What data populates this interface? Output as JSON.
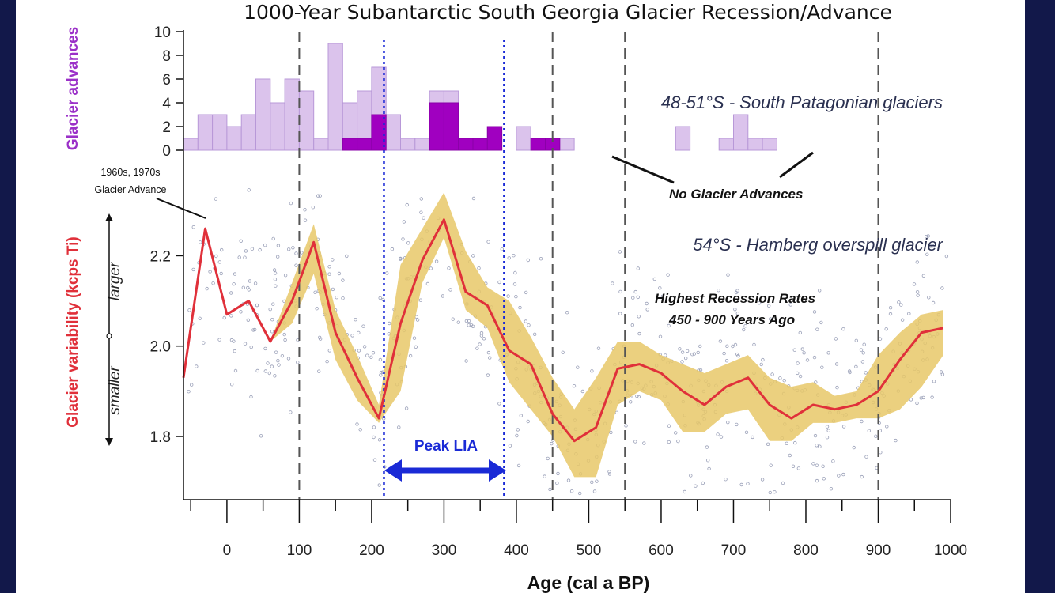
{
  "chart_data": {
    "title": "1000-Year Subantarctic South Georgia Glacier Recession/Advance",
    "xlabel": "Age (cal a BP)",
    "x_ticks": [
      0,
      100,
      200,
      300,
      400,
      500,
      600,
      700,
      800,
      900,
      1000
    ],
    "xlim": [
      -60,
      1000
    ],
    "top_panel": {
      "type": "bar",
      "ylabel": "Glacier advances",
      "y_ticks": [
        0,
        2,
        4,
        6,
        8,
        10
      ],
      "ylim": [
        0,
        10
      ],
      "bin_start": -60,
      "bin_width": 20,
      "series": [
        {
          "name": "48-51°S - South Patagonian glaciers",
          "color": "#dbc3ec",
          "values": [
            1,
            3,
            3,
            2,
            3,
            6,
            4,
            6,
            5,
            1,
            9,
            4,
            5,
            7,
            3,
            1,
            1,
            5,
            5,
            1,
            1,
            2,
            0,
            2,
            1,
            1,
            1,
            0,
            0,
            0,
            0,
            0,
            0,
            0,
            2,
            0,
            0,
            1,
            3,
            1,
            1
          ]
        },
        {
          "name": "54°S - Hamberg overspill glacier",
          "color": "#a000c0",
          "values": [
            0,
            0,
            0,
            0,
            0,
            0,
            0,
            0,
            0,
            0,
            0,
            1,
            1,
            3,
            0,
            0,
            0,
            4,
            4,
            1,
            1,
            2,
            0,
            0,
            1,
            1,
            0,
            0,
            0,
            0,
            0,
            0,
            0,
            0,
            0,
            0,
            0,
            0,
            0,
            0,
            0
          ]
        }
      ]
    },
    "bottom_panel": {
      "type": "line",
      "ylabel": "Glacier variability (kcps Ti)",
      "y_ticks": [
        1.8,
        2.0,
        2.2
      ],
      "ylim": [
        1.66,
        2.36
      ],
      "series_name": "54°S - Hamberg overspill glacier",
      "line_color": "#e0303a",
      "band_color": "#e8c868",
      "x": [
        -60,
        -30,
        0,
        30,
        60,
        90,
        120,
        150,
        180,
        210,
        240,
        270,
        300,
        330,
        360,
        390,
        420,
        450,
        480,
        510,
        540,
        570,
        600,
        630,
        660,
        690,
        720,
        750,
        780,
        810,
        840,
        870,
        900,
        930,
        960,
        990
      ],
      "y": [
        1.93,
        2.26,
        2.07,
        2.1,
        2.01,
        2.1,
        2.23,
        2.03,
        1.93,
        1.84,
        2.05,
        2.19,
        2.28,
        2.12,
        2.09,
        1.99,
        1.96,
        1.85,
        1.79,
        1.82,
        1.95,
        1.96,
        1.94,
        1.9,
        1.87,
        1.91,
        1.93,
        1.87,
        1.84,
        1.87,
        1.86,
        1.87,
        1.9,
        1.97,
        2.03,
        2.04
      ],
      "upper": [
        1.93,
        2.26,
        2.07,
        2.1,
        2.01,
        2.14,
        2.27,
        2.08,
        1.98,
        1.87,
        2.18,
        2.26,
        2.34,
        2.21,
        2.13,
        2.1,
        2.02,
        1.93,
        1.86,
        1.93,
        2.01,
        2.01,
        1.98,
        1.96,
        1.94,
        1.96,
        1.98,
        1.93,
        1.91,
        1.92,
        1.89,
        1.9,
        1.98,
        2.03,
        2.07,
        2.08
      ],
      "lower": [
        1.93,
        2.26,
        2.07,
        2.1,
        2.01,
        2.05,
        2.16,
        1.97,
        1.88,
        1.83,
        1.9,
        2.14,
        2.24,
        2.08,
        2.04,
        1.92,
        1.86,
        1.8,
        1.71,
        1.71,
        1.87,
        1.9,
        1.88,
        1.81,
        1.81,
        1.85,
        1.86,
        1.79,
        1.79,
        1.83,
        1.83,
        1.84,
        1.84,
        1.86,
        1.91,
        1.98
      ],
      "side_labels": {
        "up": "larger",
        "down": "smaller"
      }
    },
    "vertical_lines": {
      "dashed_gray": [
        100,
        450,
        550,
        900
      ],
      "dotted_blue": [
        217,
        383
      ]
    },
    "annotations": {
      "patagonian_label": "48-51°S - South Patagonian glaciers",
      "hamberg_label": "54°S - Hamberg overspill glacier",
      "no_advances": "No Glacier Advances",
      "recession_line1": "Highest Recession Rates",
      "recession_line2": "450 - 900 Years Ago",
      "advance_line1": "1960s, 1970s",
      "advance_line2": "Glacier Advance",
      "peak_lia": "Peak LIA"
    },
    "colors": {
      "light_bar": "#dbc3ec",
      "dark_bar": "#a000c0",
      "line": "#e0303a",
      "band": "#e8c868",
      "lia": "#1a2ad6",
      "background": "#12184a"
    }
  }
}
